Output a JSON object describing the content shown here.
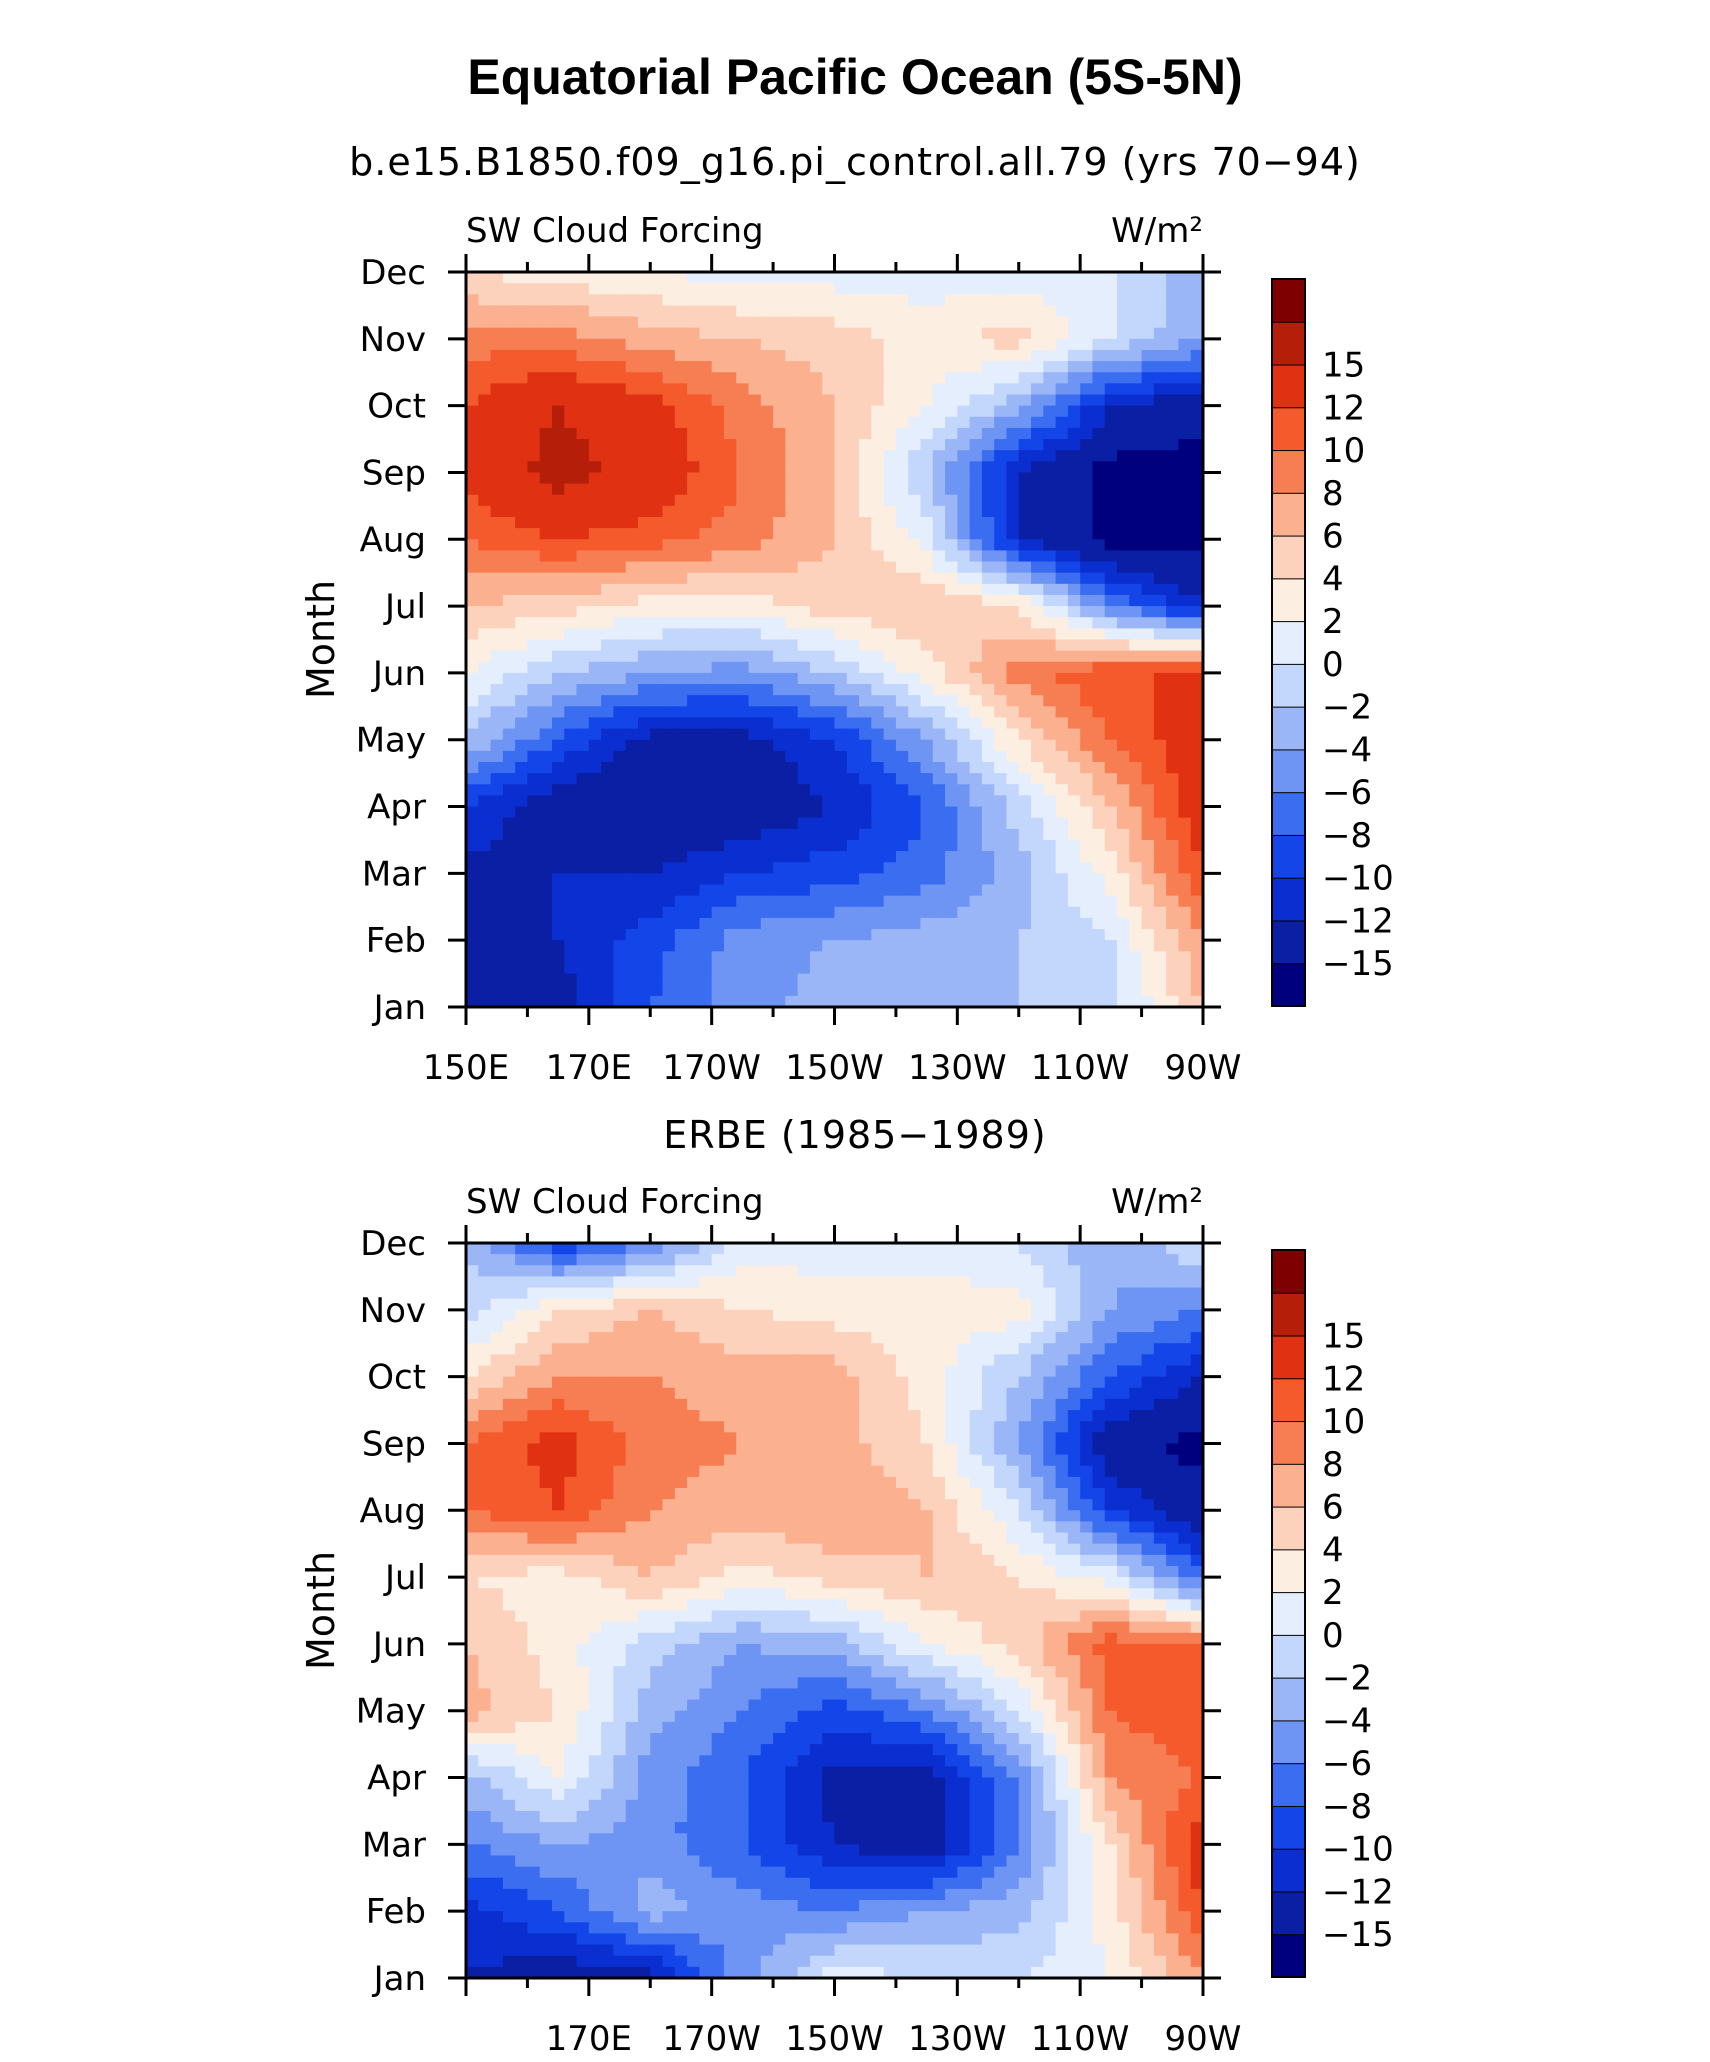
{
  "figure": {
    "title": "Equatorial Pacific Ocean (5S-5N)"
  },
  "colorbar": {
    "colors": [
      "#00007f",
      "#0a1fa3",
      "#0b2ed0",
      "#1345e8",
      "#3a6df0",
      "#6e95f3",
      "#9ab6f6",
      "#c3d6fb",
      "#e4eefd",
      "#fdeee2",
      "#fcd2bd",
      "#fbb08f",
      "#f67e52",
      "#f45a2c",
      "#e03212",
      "#b51e08",
      "#7e0000"
    ],
    "labels": [
      "15",
      "12",
      "10",
      "8",
      "6",
      "4",
      "2",
      "0",
      "−12",
      "−15"
    ]
  },
  "chart_data": [
    {
      "type": "heatmap",
      "subtitle": "b.e15.B1850.f09_g16.pi_control.all.79 (yrs 70−94)",
      "left_label": "SW Cloud Forcing",
      "right_label": "W/m²",
      "ylabel": "Month",
      "y_ticks": [
        "Jan",
        "Feb",
        "Mar",
        "Apr",
        "May",
        "Jun",
        "Jul",
        "Aug",
        "Sep",
        "Oct",
        "Nov",
        "Dec"
      ],
      "x_ticks": [
        "150E",
        "170E",
        "170W",
        "150W",
        "130W",
        "110W",
        "90W"
      ],
      "xlim": [
        150,
        270
      ],
      "levels": [
        -15,
        -12,
        -10,
        -8,
        -6,
        -4,
        -2,
        0,
        2,
        4,
        6,
        8,
        10,
        12,
        15
      ],
      "level_labels": [
        "−2",
        "−4",
        "−6",
        "−8",
        "−10"
      ],
      "x": [
        150,
        165,
        180,
        195,
        210,
        225,
        240,
        255,
        270
      ],
      "y": [
        0,
        1,
        2,
        3,
        4,
        5,
        6,
        7,
        8,
        9,
        10,
        11
      ],
      "z": [
        [
          -14,
          -13,
          -8,
          -5,
          -3,
          -2,
          -2,
          -1,
          6
        ],
        [
          -13,
          -12,
          -9,
          -5,
          -4,
          -3,
          -2,
          0,
          8
        ],
        [
          -13,
          -12,
          -12,
          -10,
          -9,
          -7,
          -3,
          3,
          12
        ],
        [
          -10,
          -14,
          -15,
          -14,
          -12,
          -8,
          -1,
          6,
          14
        ],
        [
          -2,
          -8,
          -13,
          -13,
          -10,
          -4,
          4,
          10,
          14
        ],
        [
          2,
          -2,
          -4,
          -5,
          -2,
          3,
          9,
          12,
          12
        ],
        [
          6,
          5,
          3,
          3,
          5,
          6,
          4,
          -6,
          -12
        ],
        [
          10,
          12,
          11,
          9,
          6,
          1,
          -12,
          -16,
          -16
        ],
        [
          13,
          16,
          14,
          10,
          6,
          -2,
          -12,
          -16,
          -16
        ],
        [
          12,
          15,
          13,
          9,
          6,
          2,
          -3,
          -12,
          -14
        ],
        [
          9,
          9,
          7,
          6,
          5,
          3,
          5,
          0,
          -4
        ],
        [
          4,
          3,
          2,
          1,
          1,
          1,
          1,
          0,
          -3
        ]
      ]
    },
    {
      "type": "heatmap",
      "subtitle": "ERBE (1985−1989)",
      "left_label": "SW Cloud Forcing",
      "right_label": "W/m²",
      "ylabel": "Month",
      "y_ticks": [
        "Jan",
        "Feb",
        "Mar",
        "Apr",
        "May",
        "Jun",
        "Jul",
        "Aug",
        "Sep",
        "Oct",
        "Nov",
        "Dec"
      ],
      "x_ticks": [
        "170E",
        "170W",
        "150W",
        "130W",
        "110W",
        "90W"
      ],
      "xlim": [
        150,
        270
      ],
      "levels": [
        -15,
        -12,
        -10,
        -8,
        -6,
        -4,
        -2,
        0,
        2,
        4,
        6,
        8,
        10,
        12,
        15
      ],
      "level_labels": [
        "−2",
        "−4",
        "−6",
        "−8",
        "−10"
      ],
      "x": [
        150,
        165,
        180,
        195,
        210,
        225,
        240,
        255,
        270
      ],
      "y": [
        0,
        1,
        2,
        3,
        4,
        5,
        6,
        7,
        8,
        9,
        10,
        11
      ],
      "z": [
        [
          -12,
          -14,
          -13,
          -5,
          1,
          0,
          0,
          2,
          8
        ],
        [
          -11,
          -8,
          -3,
          -5,
          -6,
          -4,
          -3,
          3,
          12
        ],
        [
          -6,
          -4,
          -5,
          -8,
          -12,
          -14,
          -6,
          4,
          14
        ],
        [
          -3,
          2,
          -5,
          -8,
          -13,
          -13,
          -6,
          8,
          10
        ],
        [
          7,
          4,
          -3,
          -6,
          -9,
          -6,
          0,
          10,
          12
        ],
        [
          6,
          3,
          -1,
          -4,
          -3,
          2,
          5,
          11,
          10
        ],
        [
          4,
          3,
          6,
          3,
          5,
          6,
          4,
          1,
          -8
        ],
        [
          10,
          12,
          8,
          7,
          8,
          6,
          0,
          -10,
          -14
        ],
        [
          10,
          13,
          9,
          8,
          7,
          4,
          -4,
          -14,
          -16
        ],
        [
          4,
          8,
          8,
          7,
          7,
          3,
          -2,
          -8,
          -12
        ],
        [
          -1,
          4,
          6,
          4,
          3,
          3,
          3,
          -4,
          -6
        ],
        [
          -2,
          -10,
          -6,
          1,
          1,
          1,
          0,
          -4,
          0
        ]
      ]
    }
  ]
}
